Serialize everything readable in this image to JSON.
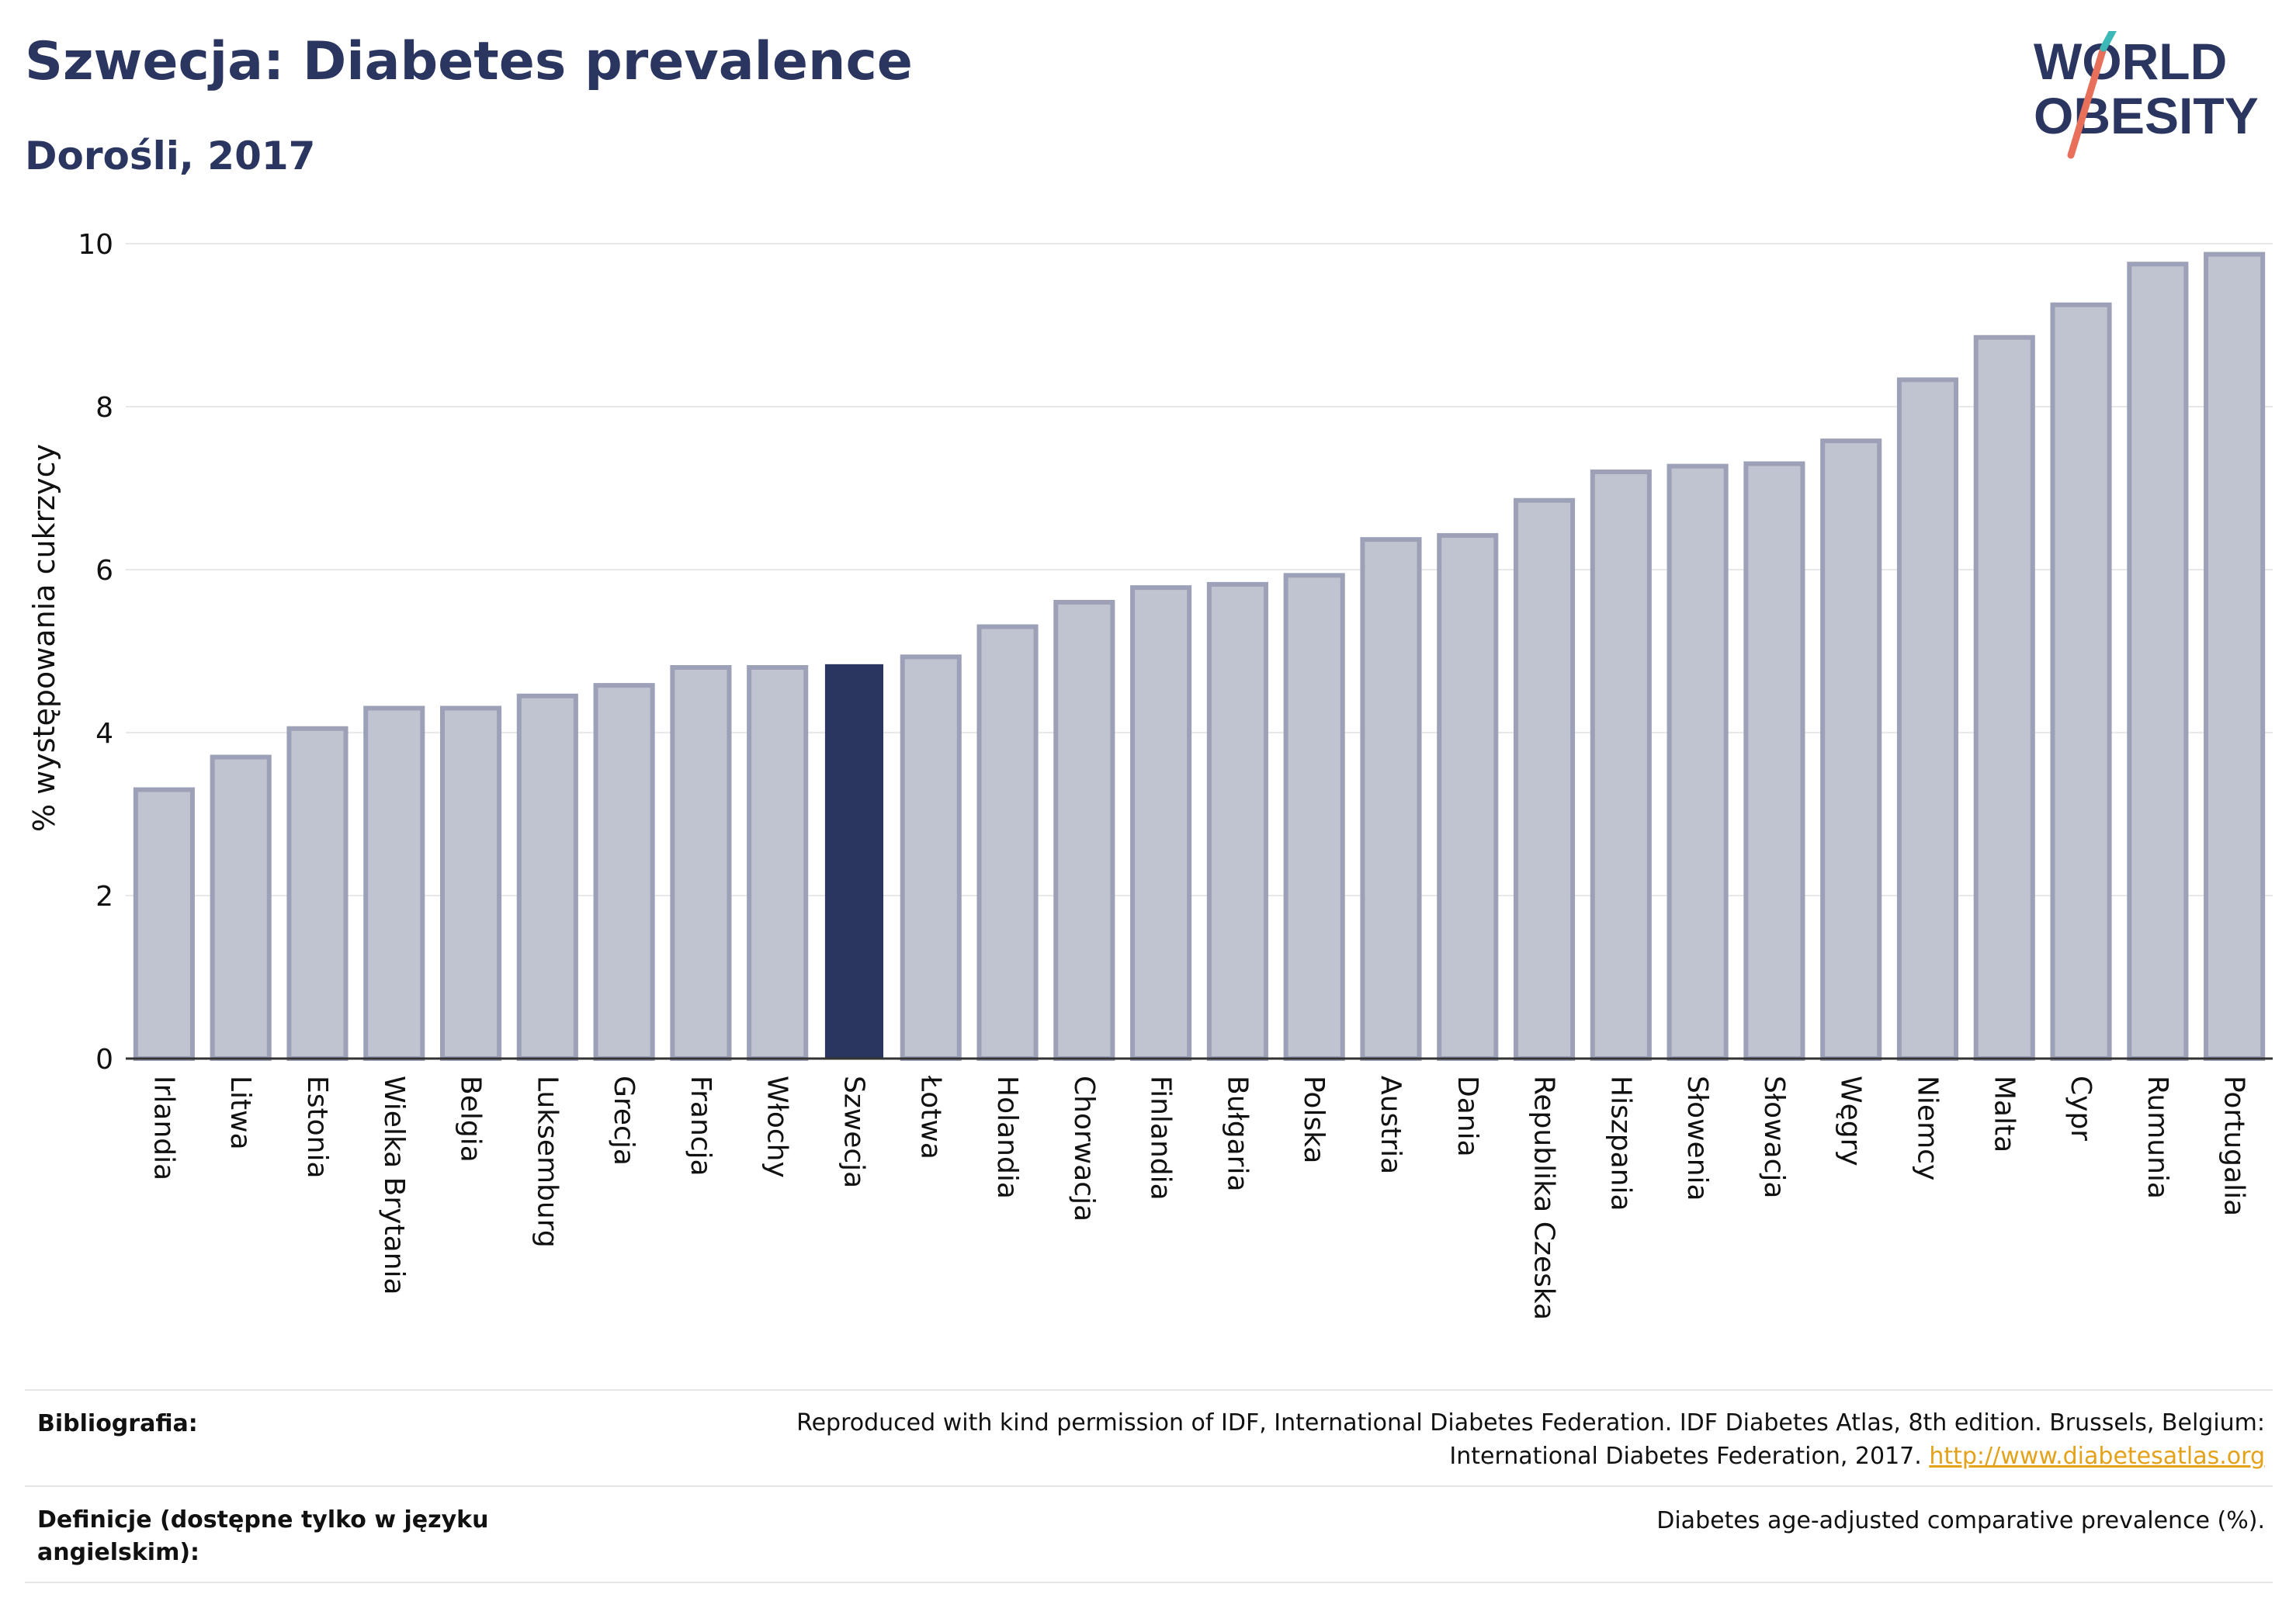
{
  "header": {
    "title": "Szwecja: Diabetes prevalence",
    "subtitle": "Dorośli, 2017"
  },
  "logo": {
    "line1": "WORLD",
    "line2": "OBESITY"
  },
  "colors": {
    "bar": "#c0c3d0",
    "bar_stroke": "#9ca1b8",
    "highlight": "#2a3560",
    "grid": "#e8e8e8",
    "text": "#2a3560",
    "link": "#e3a21a"
  },
  "chart_data": {
    "type": "bar",
    "title": "Szwecja: Diabetes prevalence",
    "subtitle": "Dorośli, 2017",
    "ylabel": "% występowania cukrzycy",
    "xlabel": "",
    "ylim": [
      0,
      10
    ],
    "yticks": [
      0,
      2,
      4,
      6,
      8,
      10
    ],
    "highlight": "Szwecja",
    "grid": true,
    "categories": [
      "Irlandia",
      "Litwa",
      "Estonia",
      "Wielka Brytania",
      "Belgia",
      "Luksemburg",
      "Grecja",
      "Francja",
      "Włochy",
      "Szwecja",
      "Łotwa",
      "Holandia",
      "Chorwacja",
      "Finlandia",
      "Bułgaria",
      "Polska",
      "Austria",
      "Dania",
      "Republika Czeska",
      "Hiszpania",
      "Słowenia",
      "Słowacja",
      "Węgry",
      "Niemcy",
      "Malta",
      "Cypr",
      "Rumunia",
      "Portugalia"
    ],
    "values": [
      3.3,
      3.7,
      4.05,
      4.3,
      4.3,
      4.45,
      4.58,
      4.8,
      4.8,
      4.83,
      4.93,
      5.3,
      5.6,
      5.78,
      5.82,
      5.93,
      6.37,
      6.42,
      6.85,
      7.2,
      7.27,
      7.3,
      7.58,
      8.33,
      8.85,
      9.25,
      9.75,
      9.87
    ]
  },
  "footer": {
    "bibliography_label": "Bibliografia:",
    "bibliography_line1": "Reproduced with kind permission of IDF, International Diabetes Federation. IDF Diabetes Atlas, 8th edition. Brussels, Belgium:",
    "bibliography_line2": "International Diabetes Federation, 2017.",
    "bibliography_link": "http://www.diabetesatlas.org",
    "definitions_label_line1": "Definicje (dostępne tylko w języku",
    "definitions_label_line2": "angielskim):",
    "definitions_text": "Diabetes age-adjusted comparative prevalence (%)."
  }
}
